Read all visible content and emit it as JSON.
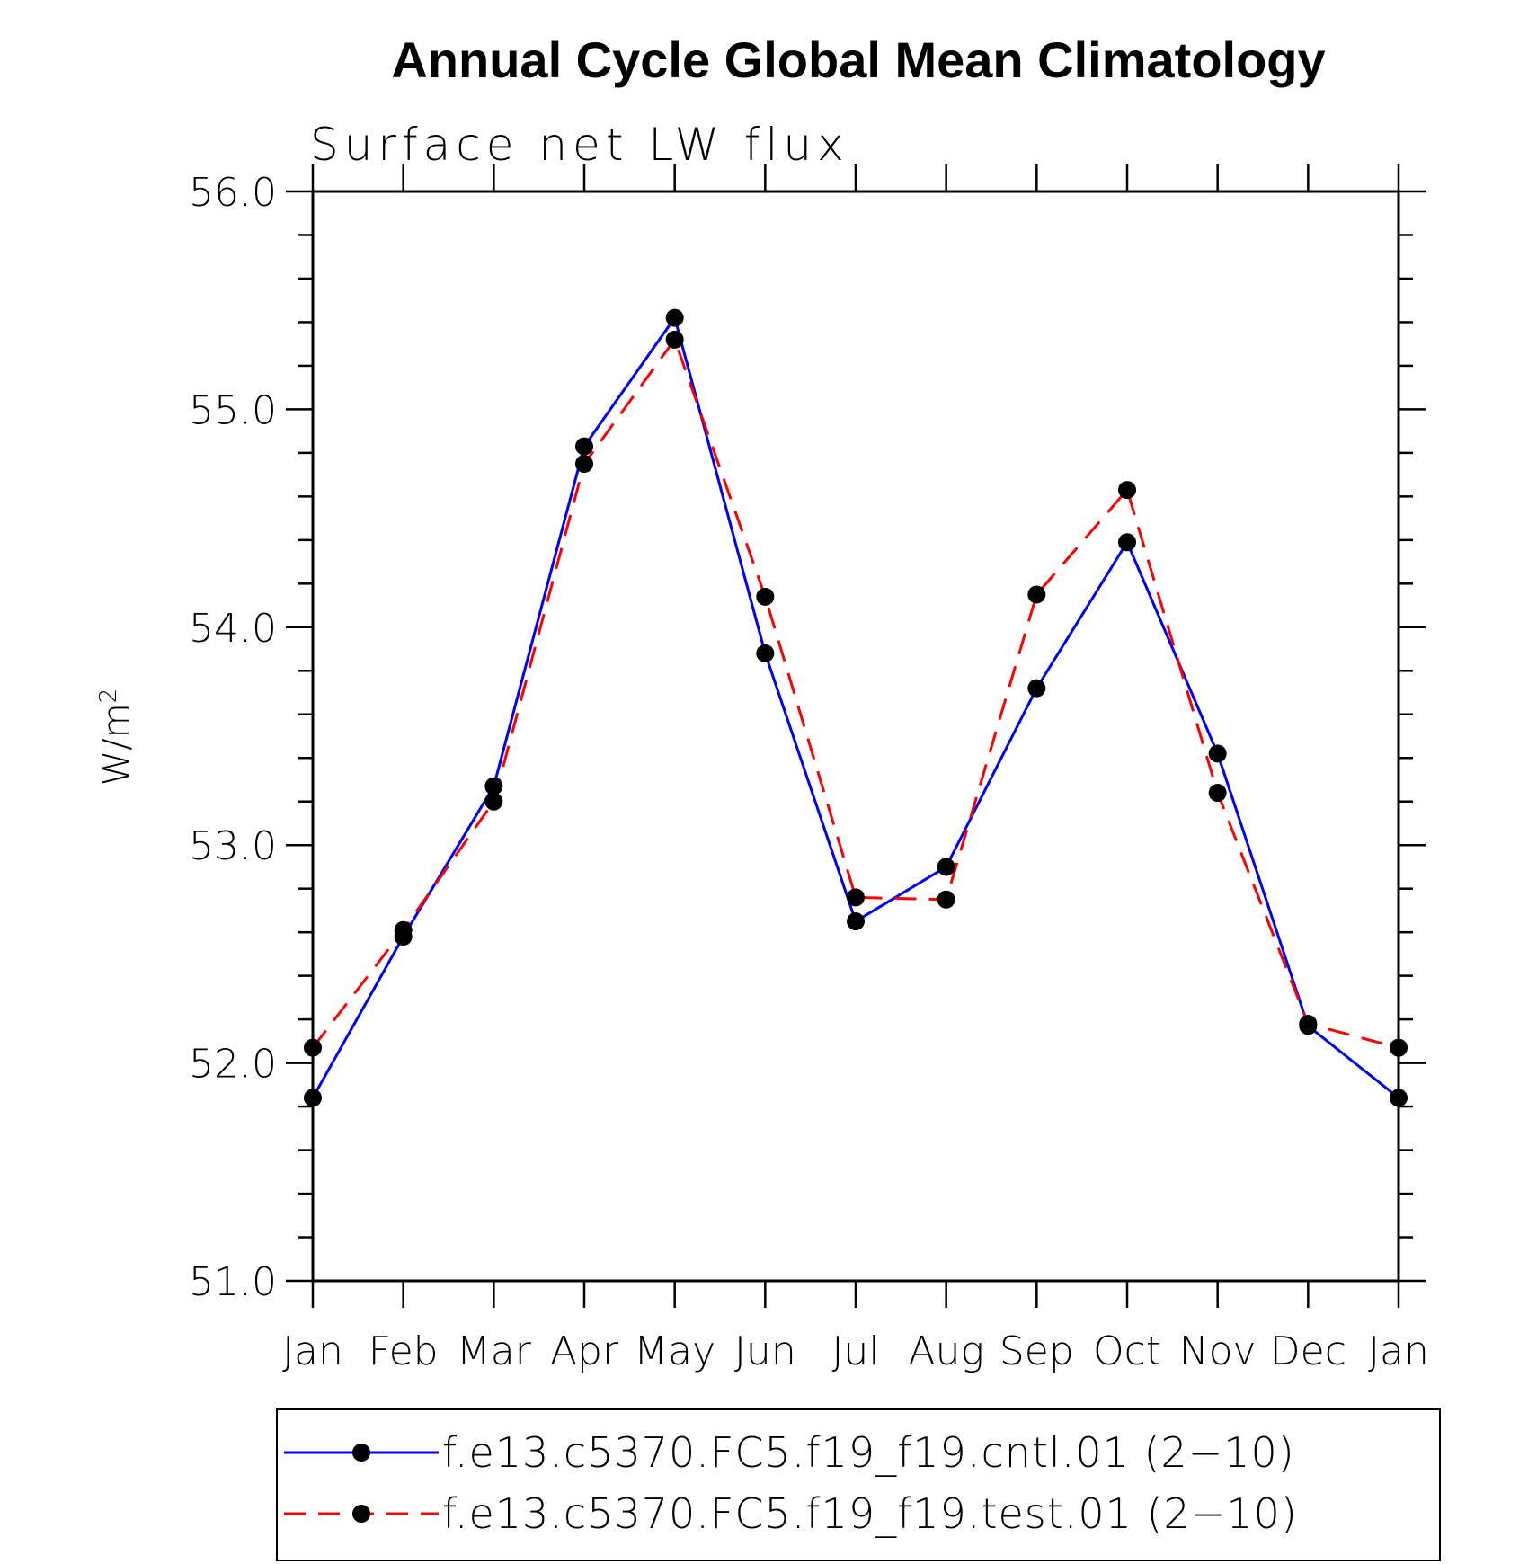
{
  "chart_data": {
    "type": "line",
    "title": "Annual Cycle Global Mean Climatology",
    "subtitle": "Surface net LW flux",
    "xlabel": "",
    "ylabel_base": "W/m",
    "ylabel_sup": "2",
    "categories": [
      "Jan",
      "Feb",
      "Mar",
      "Apr",
      "May",
      "Jun",
      "Jul",
      "Aug",
      "Sep",
      "Oct",
      "Nov",
      "Dec",
      "Jan"
    ],
    "ylim": [
      51.0,
      56.0
    ],
    "yticks": [
      "51.0",
      "52.0",
      "53.0",
      "54.0",
      "55.0",
      "56.0"
    ],
    "grid": false,
    "legend_position": "bottom",
    "series": [
      {
        "name": "f.e13.c5370.FC5.f19_f19.cntl.01 (2−10)",
        "color": "#0000ff",
        "dash": "solid",
        "values": [
          51.84,
          52.58,
          53.27,
          54.83,
          55.42,
          53.88,
          52.65,
          52.9,
          53.72,
          54.39,
          53.42,
          52.17,
          51.84
        ]
      },
      {
        "name": "f.e13.c5370.FC5.f19_f19.test.01 (2−10)",
        "color": "#ff0000",
        "dash": "dashed",
        "values": [
          52.07,
          52.61,
          53.2,
          54.75,
          55.32,
          54.14,
          52.76,
          52.75,
          54.15,
          54.63,
          53.24,
          52.18,
          52.07
        ]
      }
    ]
  }
}
